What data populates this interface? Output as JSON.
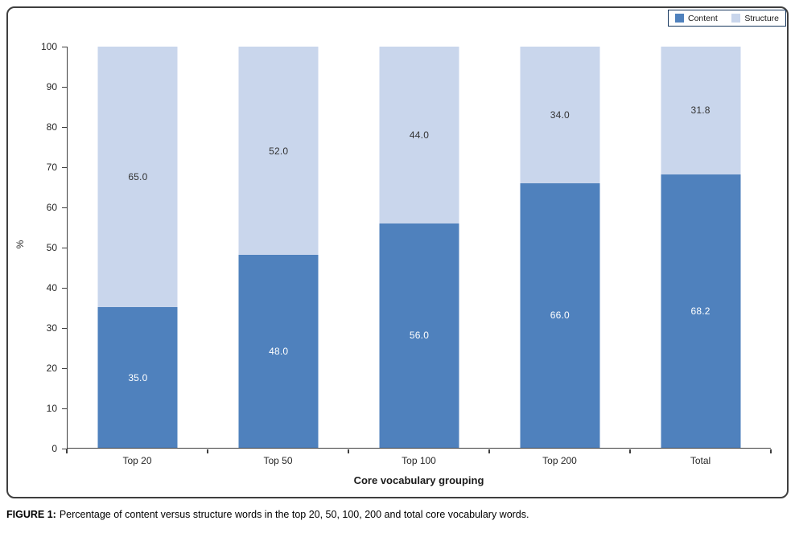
{
  "figure": {
    "caption_label": "FIGURE 1:",
    "caption_text": "Percentage of content versus structure words in the top 20, 50, 100, 200 and total core vocabulary words."
  },
  "chart_data": {
    "type": "bar",
    "stacked": true,
    "title": "",
    "xlabel": "Core vocabulary grouping",
    "ylabel": "%",
    "ylim": [
      0,
      100
    ],
    "yticks": [
      0,
      10,
      20,
      30,
      40,
      50,
      60,
      70,
      80,
      90,
      100
    ],
    "grid": false,
    "legend_position": "top-right",
    "categories": [
      "Top 20",
      "Top 50",
      "Top 100",
      "Top 200",
      "Total"
    ],
    "series": [
      {
        "name": "Content",
        "color": "#4F81BD",
        "label_color": "#FFFFFF",
        "values": [
          35.0,
          48.0,
          56.0,
          66.0,
          68.2
        ]
      },
      {
        "name": "Structure",
        "color": "#C9D6EC",
        "label_color": "#333333",
        "values": [
          65.0,
          52.0,
          44.0,
          34.0,
          31.8
        ]
      }
    ],
    "value_label_decimals": 1
  },
  "colors": {
    "content_fill": "#4F81BD",
    "structure_fill": "#C9D6EC",
    "axis_line": "#3F3F3F",
    "chart_border": "#3F3F3F",
    "legend_border": "#17375E",
    "text": "#262626"
  }
}
